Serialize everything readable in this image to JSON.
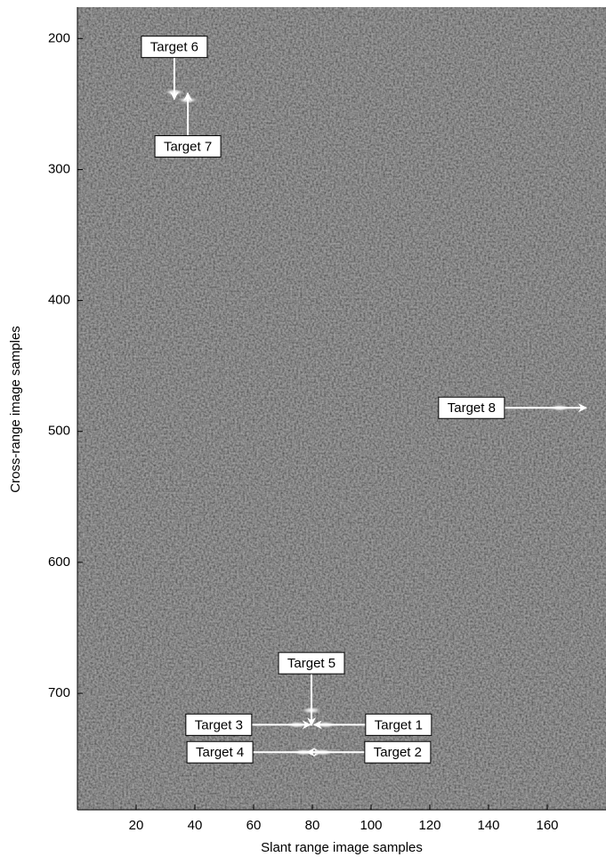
{
  "chart_data": {
    "type": "image",
    "x_label": "Slant range image samples",
    "y_label": "Cross-range image samples",
    "xlim": [
      0,
      180
    ],
    "ylim": [
      176,
      789
    ],
    "y_reversed": true,
    "xticks": [
      20,
      40,
      60,
      80,
      100,
      120,
      140,
      160
    ],
    "yticks": [
      200,
      300,
      400,
      500,
      600,
      700
    ],
    "annotations": [
      {
        "text": "Target 6",
        "x": 33,
        "y": 241
      },
      {
        "text": "Target 7",
        "x": 37.6,
        "y": 247
      },
      {
        "text": "Target 8",
        "x": 164.2,
        "y": 482
      },
      {
        "text": "Target 5",
        "x": 79.7,
        "y": 713
      },
      {
        "text": "Target 3",
        "x": 74.8,
        "y": 724
      },
      {
        "text": "Target 1",
        "x": 84.5,
        "y": 724
      },
      {
        "text": "Target 4",
        "x": 77,
        "y": 745
      },
      {
        "text": "Target 2",
        "x": 83.6,
        "y": 745
      }
    ]
  }
}
